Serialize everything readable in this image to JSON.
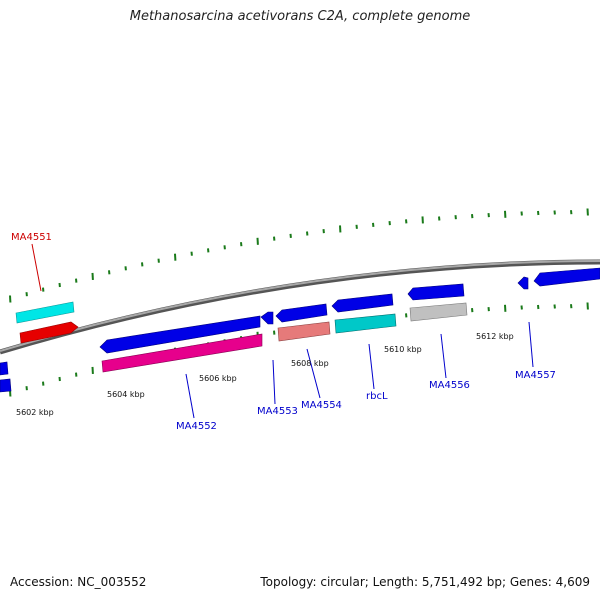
{
  "title": "Methanosarcina acetivorans C2A, complete genome",
  "footer": {
    "accession": "Accession: NC_003552",
    "summary": "Topology: circular; Length: 5,751,492 bp; Genes: 4,609"
  },
  "colors": {
    "backbone": "#808080",
    "tick": "#1a7a1a",
    "label_blue": "#0000cc",
    "label_red": "#cc0000",
    "cds_blue": "#0000e6",
    "cyan": "#00e6e6",
    "red": "#e60000",
    "magenta": "#e6008c",
    "salmon": "#e67a7a",
    "teal": "#00c8c8",
    "gray": "#c0c0c0"
  },
  "ticks": [
    {
      "label": "5602 kbp"
    },
    {
      "label": "5604 kbp"
    },
    {
      "label": "5606 kbp"
    },
    {
      "label": "5608 kbp"
    },
    {
      "label": "5610 kbp"
    },
    {
      "label": "5612 kbp"
    }
  ],
  "gene_labels": [
    {
      "name": "MA4551",
      "color": "red"
    },
    {
      "name": "MA4552",
      "color": "blue"
    },
    {
      "name": "MA4553",
      "color": "blue"
    },
    {
      "name": "MA4554",
      "color": "blue"
    },
    {
      "name": "rbcL",
      "color": "blue"
    },
    {
      "name": "MA4556",
      "color": "blue"
    },
    {
      "name": "MA4557",
      "color": "blue"
    }
  ]
}
